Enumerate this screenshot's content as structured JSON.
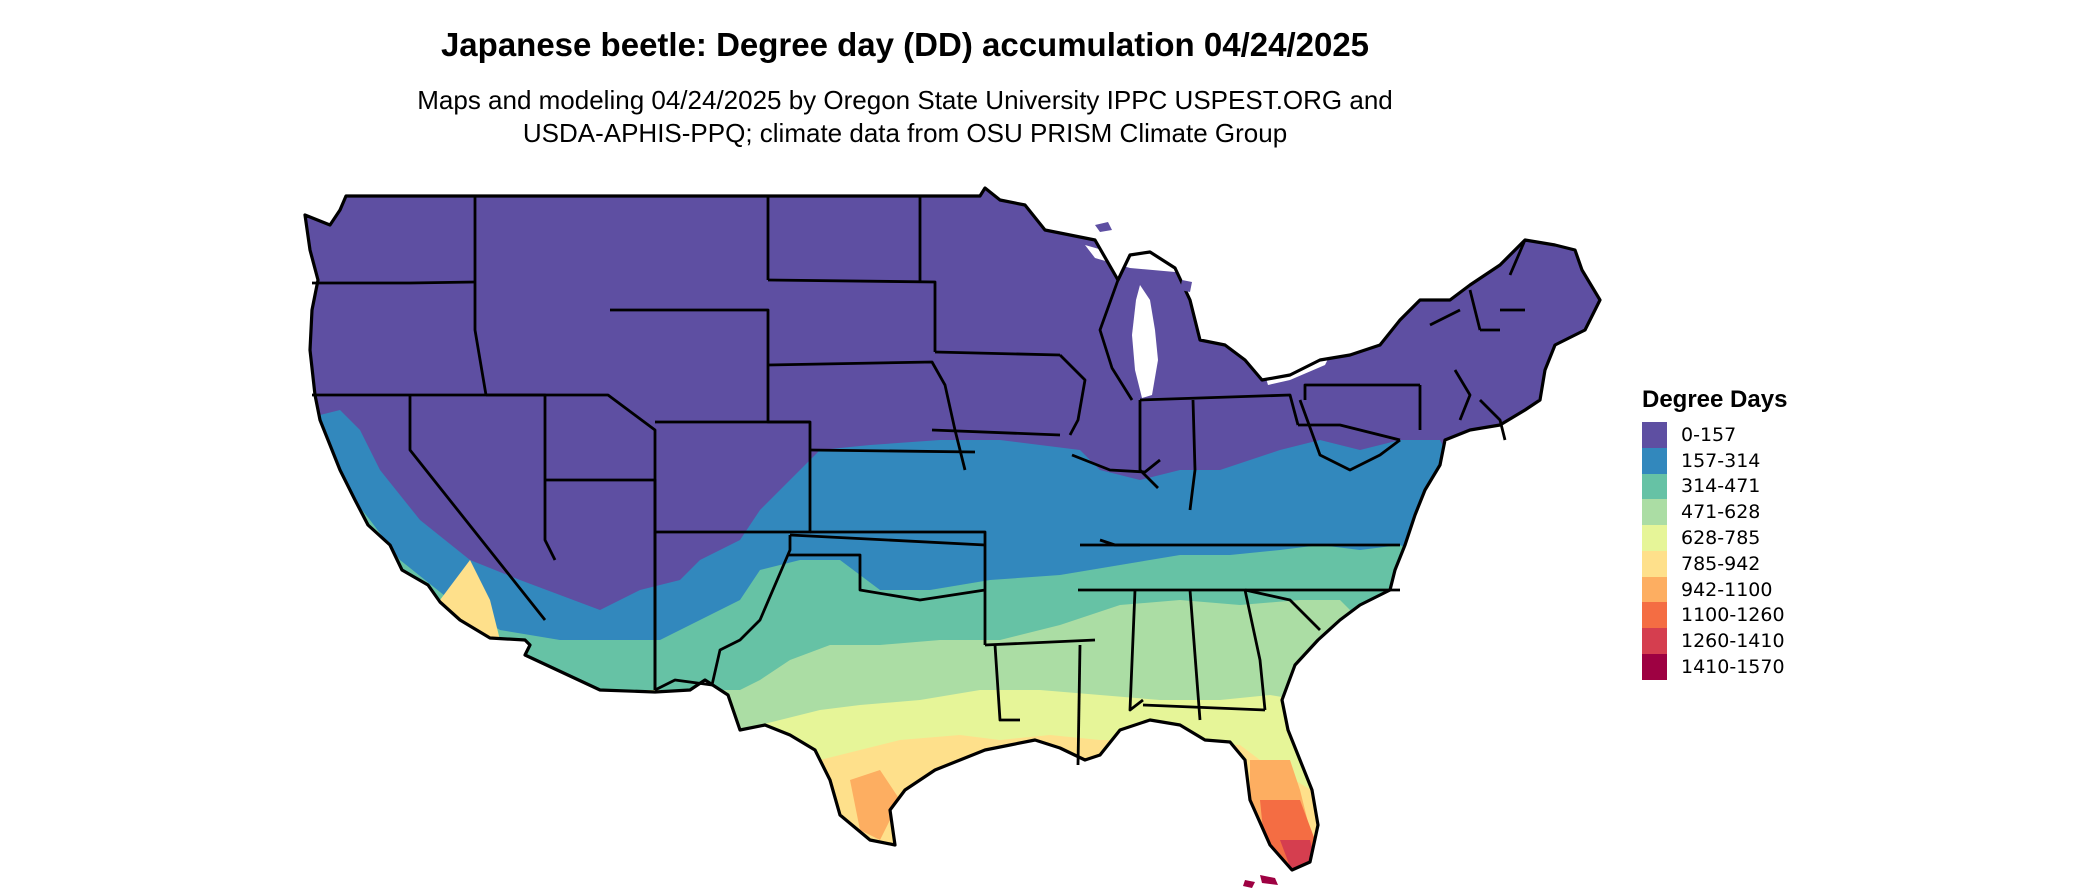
{
  "title": "Japanese beetle: Degree day (DD) accumulation 04/24/2025",
  "subtitle_lines": [
    "Maps and modeling 04/24/2025 by Oregon State University IPPC USPEST.ORG and",
    "USDA-APHIS-PPQ; climate data from OSU PRISM Climate Group"
  ],
  "legend": {
    "title": "Degree Days",
    "items": [
      {
        "label": "0-157",
        "color": "#5E4FA2"
      },
      {
        "label": "157-314",
        "color": "#3288BD"
      },
      {
        "label": "314-471",
        "color": "#66C2A5"
      },
      {
        "label": "471-628",
        "color": "#ABDDA4"
      },
      {
        "label": "628-785",
        "color": "#E6F598"
      },
      {
        "label": "785-942",
        "color": "#FEE08B"
      },
      {
        "label": "942-1100",
        "color": "#FDAE61"
      },
      {
        "label": "1100-1260",
        "color": "#F46D43"
      },
      {
        "label": "1260-1410",
        "color": "#D53E4F"
      },
      {
        "label": "1410-1570",
        "color": "#9E0142"
      }
    ]
  }
}
